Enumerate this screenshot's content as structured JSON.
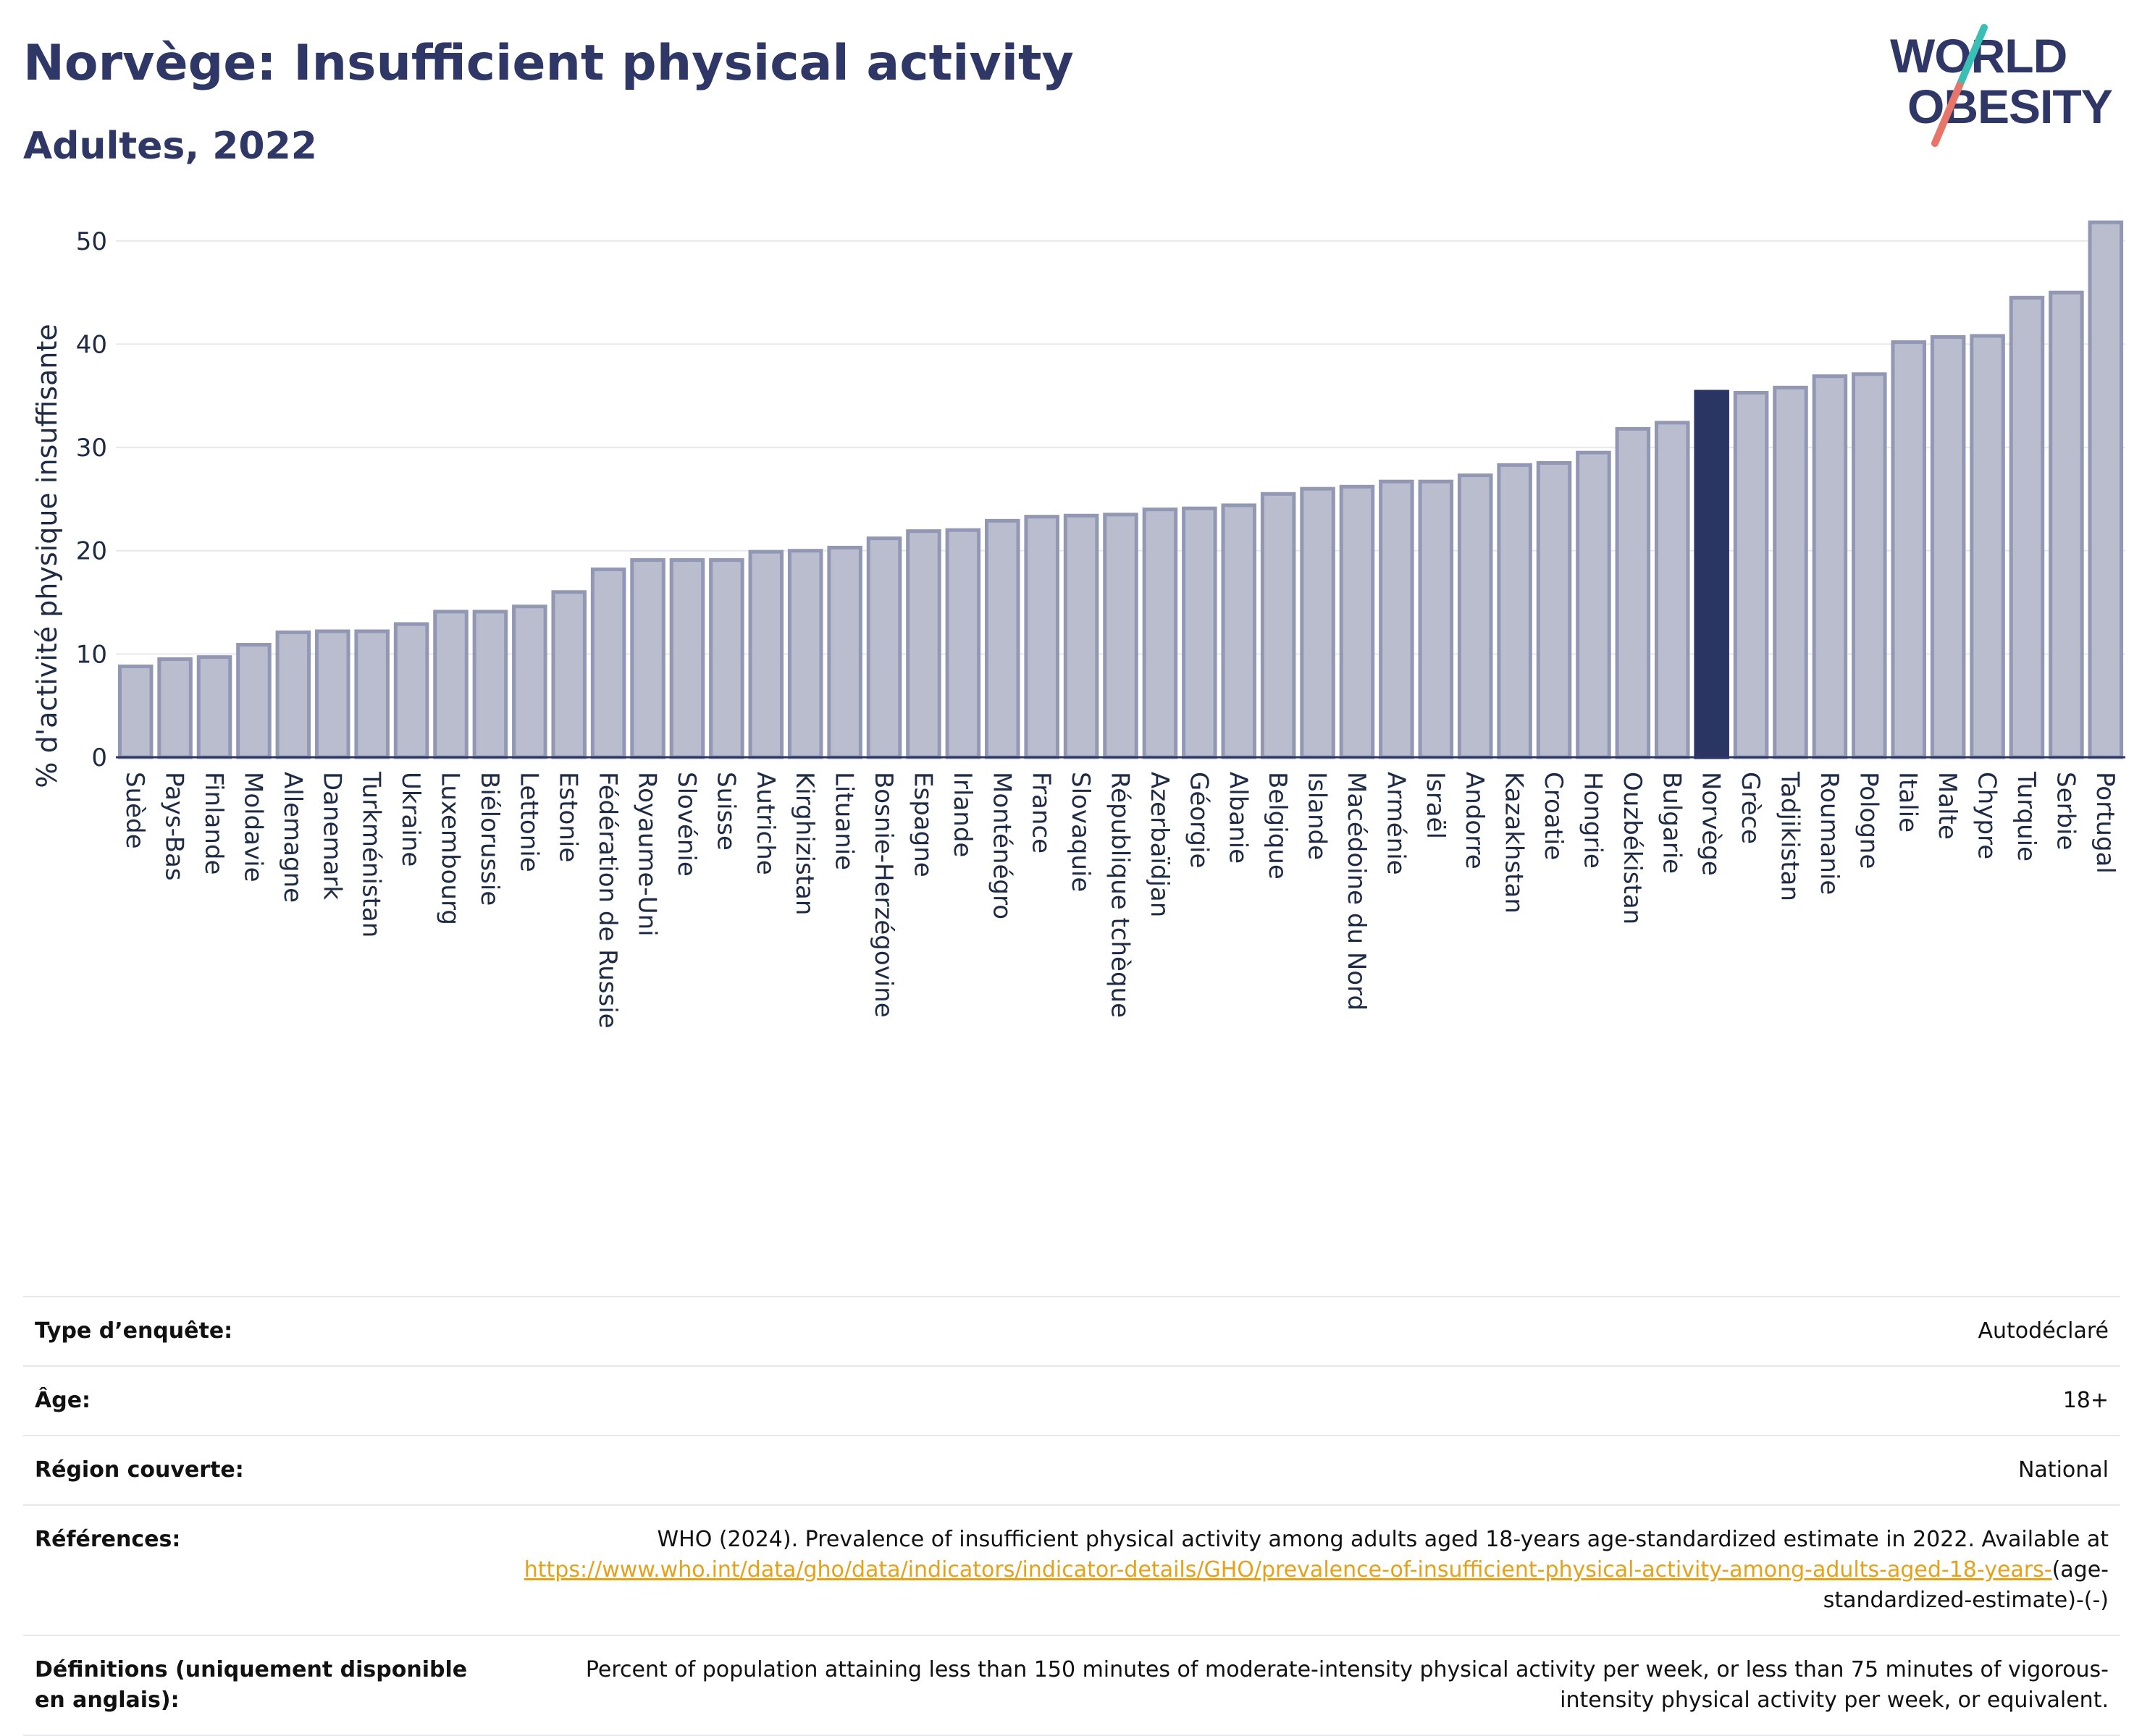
{
  "title": "Norvège: Insufficient physical activity",
  "subtitle": "Adultes, 2022",
  "logo": {
    "line1": "WORLD",
    "line2": "OBESITY",
    "colors": {
      "text": "#2e3765",
      "slash_top": "#3bbfb4",
      "slash_bottom": "#e8756a"
    }
  },
  "colors": {
    "bar": "#b9bdcd",
    "bar_border": "#9298b3",
    "highlight": "#2b3563",
    "grid": "#e6e8ee",
    "axis": "#2e3765"
  },
  "chart_data": {
    "type": "bar",
    "title": "Norvège: Insufficient physical activity",
    "subtitle": "Adultes, 2022",
    "xlabel": "",
    "ylabel": "% d'activité physique insuffisante",
    "ylim": [
      0,
      53
    ],
    "yticks": [
      0,
      10,
      20,
      30,
      40,
      50
    ],
    "grid": true,
    "highlight": "Norvège",
    "categories": [
      "Suède",
      "Pays-Bas",
      "Finlande",
      "Moldavie",
      "Allemagne",
      "Danemark",
      "Turkménistan",
      "Ukraine",
      "Luxembourg",
      "Biélorussie",
      "Lettonie",
      "Estonie",
      "Fédération de Russie",
      "Royaume-Uni",
      "Slovénie",
      "Suisse",
      "Autriche",
      "Kirghizistan",
      "Lituanie",
      "Bosnie-Herzégovine",
      "Espagne",
      "Irlande",
      "Monténégro",
      "France",
      "Slovaquie",
      "République tchèque",
      "Azerbaïdjan",
      "Géorgie",
      "Albanie",
      "Belgique",
      "Islande",
      "Macédoine du Nord",
      "Arménie",
      "Israël",
      "Andorre",
      "Kazakhstan",
      "Croatie",
      "Hongrie",
      "Ouzbékistan",
      "Bulgarie",
      "Norvège",
      "Grèce",
      "Tadjikistan",
      "Roumanie",
      "Pologne",
      "Italie",
      "Malte",
      "Chypre",
      "Turquie",
      "Serbie",
      "Portugal"
    ],
    "values": [
      8.8,
      9.5,
      9.7,
      10.9,
      12.1,
      12.2,
      12.2,
      12.9,
      14.1,
      14.1,
      14.6,
      16.0,
      18.2,
      19.1,
      19.1,
      19.1,
      19.9,
      20.0,
      20.3,
      21.2,
      21.9,
      22.0,
      22.9,
      23.3,
      23.4,
      23.5,
      24.0,
      24.1,
      24.4,
      25.5,
      26.0,
      26.2,
      26.7,
      26.7,
      27.3,
      28.3,
      28.5,
      29.5,
      31.8,
      32.4,
      35.4,
      35.3,
      35.8,
      36.9,
      37.1,
      40.2,
      40.7,
      40.8,
      44.5,
      45.0,
      51.8
    ]
  },
  "meta": {
    "rows": [
      {
        "label": "Type d’enquête:",
        "value": "Autodéclaré"
      },
      {
        "label": "Âge:",
        "value": "18+"
      },
      {
        "label": "Région couverte:",
        "value": "National"
      }
    ],
    "references": {
      "label": "Références:",
      "text": "WHO (2024). Prevalence of insufficient physical activity among adults aged 18-years age-standardized estimate in 2022. Available at",
      "link": "https://www.who.int/data/gho/data/indicators/indicator-details/GHO/prevalence-of-insufficient-physical-activity-among-adults-aged-18-years-",
      "suffix": "(age-standardized-estimate)-(-)"
    },
    "definitions": {
      "label": "Définitions (uniquement disponible en anglais):",
      "value": "Percent of population attaining less than 150 minutes of moderate-intensity physical activity per week, or less than 75 minutes of vigorous-intensity physical activity per week, or equivalent."
    }
  }
}
